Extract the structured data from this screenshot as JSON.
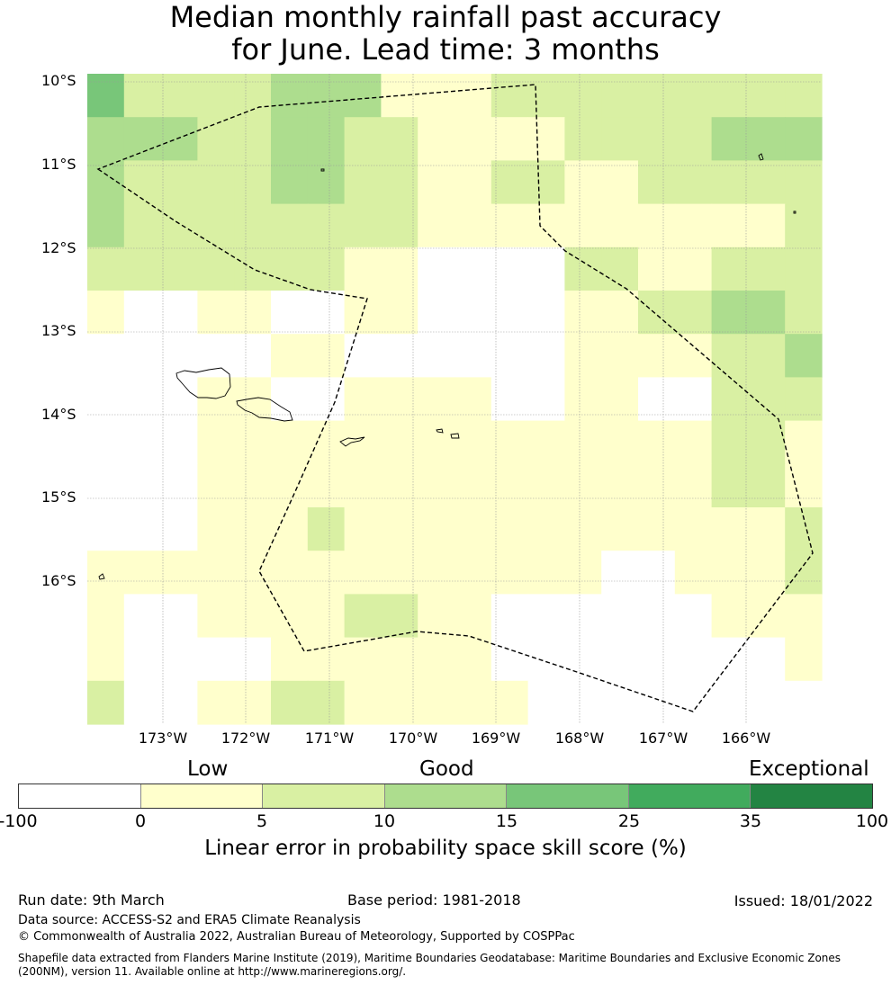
{
  "title": {
    "line1": "Median monthly rainfall past accuracy",
    "line2": "for June. Lead time: 3 months"
  },
  "map": {
    "lat_labels": [
      "10°S",
      "11°S",
      "12°S",
      "13°S",
      "14°S",
      "15°S",
      "16°S"
    ],
    "lon_labels": [
      "173°W",
      "172°W",
      "171°W",
      "170°W",
      "169°W",
      "168°W",
      "167°W",
      "166°W"
    ],
    "grid_rows": [
      [
        4,
        2,
        2,
        2,
        2,
        3,
        3,
        3,
        1,
        1,
        1,
        2,
        2,
        2,
        2,
        2,
        2,
        2,
        2,
        2
      ],
      [
        3,
        3,
        3,
        2,
        2,
        3,
        3,
        2,
        2,
        1,
        1,
        1,
        1,
        2,
        2,
        2,
        2,
        3,
        3,
        3
      ],
      [
        3,
        2,
        2,
        2,
        2,
        3,
        3,
        2,
        2,
        1,
        1,
        2,
        2,
        1,
        1,
        2,
        2,
        2,
        2,
        2
      ],
      [
        3,
        2,
        2,
        2,
        2,
        2,
        2,
        2,
        2,
        1,
        1,
        1,
        1,
        1,
        1,
        1,
        1,
        1,
        1,
        2
      ],
      [
        2,
        2,
        2,
        2,
        2,
        2,
        2,
        1,
        1,
        0,
        0,
        0,
        0,
        2,
        2,
        1,
        1,
        2,
        2,
        2
      ],
      [
        1,
        0,
        0,
        1,
        1,
        0,
        0,
        1,
        1,
        0,
        0,
        0,
        0,
        1,
        1,
        2,
        2,
        3,
        3,
        2
      ],
      [
        0,
        0,
        0,
        0,
        0,
        1,
        1,
        0,
        0,
        0,
        0,
        0,
        0,
        1,
        1,
        1,
        1,
        2,
        2,
        3
      ],
      [
        0,
        0,
        0,
        1,
        1,
        0,
        0,
        1,
        1,
        1,
        1,
        0,
        0,
        1,
        1,
        0,
        0,
        2,
        2,
        2
      ],
      [
        0,
        0,
        0,
        1,
        1,
        1,
        1,
        1,
        1,
        1,
        1,
        1,
        1,
        1,
        1,
        1,
        1,
        2,
        2,
        1
      ],
      [
        0,
        0,
        0,
        1,
        1,
        1,
        1,
        1,
        1,
        1,
        1,
        1,
        1,
        1,
        1,
        1,
        1,
        2,
        2,
        1
      ],
      [
        0,
        0,
        0,
        1,
        1,
        1,
        2,
        1,
        1,
        1,
        1,
        1,
        1,
        1,
        1,
        1,
        1,
        1,
        1,
        2
      ],
      [
        1,
        1,
        1,
        1,
        1,
        1,
        1,
        1,
        1,
        1,
        1,
        1,
        1,
        1,
        0,
        0,
        1,
        1,
        1,
        2
      ],
      [
        1,
        0,
        0,
        1,
        1,
        1,
        1,
        2,
        2,
        1,
        1,
        0,
        0,
        0,
        0,
        0,
        0,
        1,
        1,
        1
      ],
      [
        1,
        0,
        0,
        0,
        0,
        1,
        1,
        1,
        1,
        1,
        1,
        0,
        0,
        0,
        0,
        0,
        0,
        0,
        0,
        1
      ],
      [
        2,
        0,
        0,
        1,
        1,
        2,
        2,
        1,
        1,
        1,
        1,
        1,
        0,
        0,
        0,
        0,
        0,
        0,
        0,
        0
      ]
    ]
  },
  "colorbar": {
    "colors": [
      "#ffffff",
      "#ffffcc",
      "#d9f0a3",
      "#addd8e",
      "#78c679",
      "#41ab5d",
      "#238443"
    ],
    "ticks": [
      "-100",
      "0",
      "5",
      "10",
      "15",
      "25",
      "35",
      "100"
    ],
    "categories": {
      "low": "Low",
      "good": "Good",
      "exceptional": "Exceptional"
    },
    "label": "Linear error in probability space skill score (%)"
  },
  "footer": {
    "run_date": "Run date: 9th March",
    "base_period": "Base period: 1981-2018",
    "issued": "Issued: 18/01/2022",
    "data_source": "Data source: ACCESS-S2 and ERA5 Climate Reanalysis",
    "copyright": "© Commonwealth of Australia 2022, Australian Bureau of Meteorology, Supported by COSPPac",
    "shapefile": "Shapefile data extracted from Flanders Marine Institute (2019), Maritime Boundaries Geodatabase: Maritime Boundaries and Exclusive Economic Zones (200NM), version 11. Available online at http://www.marineregions.org/."
  }
}
